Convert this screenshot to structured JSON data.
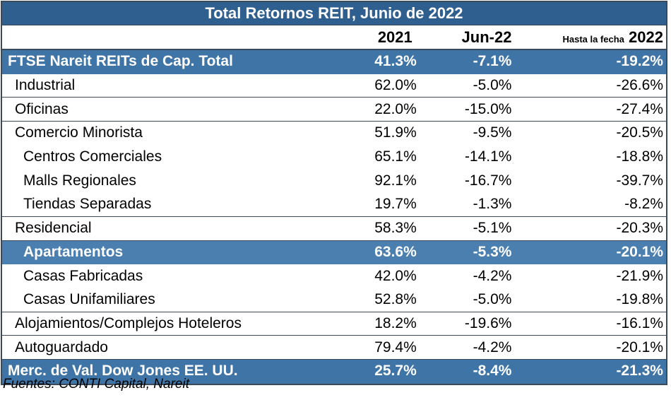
{
  "chart_data": {
    "type": "table",
    "title": "Total Retornos REIT, Junio de 2022",
    "columns": [
      "2021",
      "Jun-22",
      "Hasta la fecha",
      "2022"
    ],
    "rows": [
      {
        "name": "FTSE Nareit REITs de Cap. Total",
        "y2021": "41.3%",
        "jun22": "-7.1%",
        "ytd": "-19.2%",
        "level": 0,
        "highlight": true
      },
      {
        "name": "Industrial",
        "y2021": "62.0%",
        "jun22": "-5.0%",
        "ytd": "-26.6%",
        "level": 1,
        "groupEnd": true
      },
      {
        "name": "Oficinas",
        "y2021": "22.0%",
        "jun22": "-15.0%",
        "ytd": "-27.4%",
        "level": 1,
        "groupEnd": true
      },
      {
        "name": "Comercio Minorista",
        "y2021": "51.9%",
        "jun22": "-9.5%",
        "ytd": "-20.5%",
        "level": 1
      },
      {
        "name": "Centros Comerciales",
        "y2021": "65.1%",
        "jun22": "-14.1%",
        "ytd": "-18.8%",
        "level": 2
      },
      {
        "name": "Malls Regionales",
        "y2021": "92.1%",
        "jun22": "-16.7%",
        "ytd": "-39.7%",
        "level": 2
      },
      {
        "name": "Tiendas Separadas",
        "y2021": "19.7%",
        "jun22": "-1.3%",
        "ytd": "-8.2%",
        "level": 2,
        "groupEnd": true
      },
      {
        "name": "Residencial",
        "y2021": "58.3%",
        "jun22": "-5.1%",
        "ytd": "-20.3%",
        "level": 1,
        "groupEnd": true
      },
      {
        "name": "Apartamentos",
        "y2021": "63.6%",
        "jun22": "-5.3%",
        "ytd": "-20.1%",
        "level": 2,
        "highlight": true
      },
      {
        "name": "Casas Fabricadas",
        "y2021": "42.0%",
        "jun22": "-4.2%",
        "ytd": "-21.9%",
        "level": 2
      },
      {
        "name": "Casas Unifamiliares",
        "y2021": "52.8%",
        "jun22": "-5.0%",
        "ytd": "-19.8%",
        "level": 2,
        "groupEnd": true
      },
      {
        "name": "Alojamientos/Complejos Hoteleros",
        "y2021": "18.2%",
        "jun22": "-19.6%",
        "ytd": "-16.1%",
        "level": 1,
        "groupEnd": true
      },
      {
        "name": "Autoguardado",
        "y2021": "79.4%",
        "jun22": "-4.2%",
        "ytd": "-20.1%",
        "level": 1,
        "groupEnd": true
      },
      {
        "name": "Merc. de Val. Dow Jones EE. UU.",
        "y2021": "25.7%",
        "jun22": "-8.4%",
        "ytd": "-21.3%",
        "level": 0,
        "highlight": true
      }
    ],
    "source": "Fuentes: CONTI Capital, Nareit",
    "colors": {
      "header": "#2f5f8f",
      "highlight": "#4a7fb0",
      "border": "#3b4a5a"
    }
  }
}
